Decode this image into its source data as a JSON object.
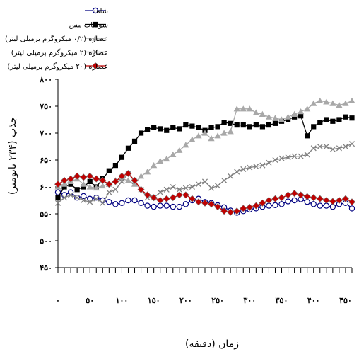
{
  "chart_data": {
    "type": "line",
    "xlabel": "زمان (دقیقه)",
    "ylabel": "جذب (۲۳۴ نانومتر)",
    "xlim": [
      0,
      460
    ],
    "ylim": [
      450,
      800
    ],
    "x_ticks": [
      0,
      50,
      100,
      150,
      200,
      250,
      300,
      350,
      400,
      450
    ],
    "x_tick_labels": [
      "۰",
      "۵۰",
      "۱۰۰",
      "۱۵۰",
      "۲۰۰",
      "۲۵۰",
      "۳۰۰",
      "۳۵۰",
      "۴۰۰",
      "۴۵۰"
    ],
    "y_ticks": [
      450,
      500,
      550,
      600,
      650,
      700,
      750,
      800
    ],
    "y_tick_labels": [
      "۴۵۰",
      "۵۰۰",
      "۵۵۰",
      "۶۰۰",
      "۶۵۰",
      "۷۰۰",
      "۷۵۰",
      "۸۰۰"
    ],
    "grid": false,
    "legend_position": "top-left",
    "x": [
      0,
      10,
      20,
      30,
      40,
      50,
      60,
      70,
      80,
      90,
      100,
      110,
      120,
      130,
      140,
      150,
      160,
      170,
      180,
      190,
      200,
      210,
      220,
      230,
      240,
      250,
      260,
      270,
      280,
      290,
      300,
      310,
      320,
      330,
      340,
      350,
      360,
      370,
      380,
      390,
      400,
      410,
      420,
      430,
      440,
      450,
      460
    ],
    "series": [
      {
        "name": "شاهد",
        "color": "#000080",
        "marker": "circle",
        "values": [
          590,
          585,
          590,
          580,
          583,
          578,
          580,
          575,
          572,
          568,
          570,
          575,
          575,
          570,
          565,
          563,
          565,
          565,
          563,
          563,
          568,
          575,
          578,
          572,
          570,
          566,
          562,
          556,
          552,
          555,
          558,
          560,
          563,
          565,
          566,
          568,
          573,
          575,
          577,
          572,
          568,
          565,
          565,
          563,
          568,
          570,
          560
        ]
      },
      {
        "name": "سولفات مس",
        "color": "#000000",
        "marker": "square",
        "values": [
          580,
          600,
          605,
          595,
          600,
          610,
          600,
          615,
          630,
          640,
          655,
          672,
          685,
          700,
          707,
          710,
          708,
          705,
          710,
          708,
          715,
          713,
          710,
          705,
          710,
          712,
          720,
          718,
          715,
          715,
          712,
          715,
          712,
          715,
          718,
          722,
          725,
          730,
          732,
          695,
          712,
          720,
          725,
          722,
          725,
          730,
          728
        ]
      },
      {
        "name": "عصاره (۰/۲ میکروگرم برمیلی لیتر)",
        "color": "#a8a8a8",
        "marker": "triangle",
        "values": [
          600,
          605,
          610,
          615,
          605,
          600,
          598,
          602,
          605,
          612,
          615,
          612,
          605,
          620,
          628,
          640,
          648,
          652,
          660,
          668,
          678,
          688,
          695,
          700,
          690,
          695,
          700,
          703,
          745,
          745,
          745,
          738,
          735,
          730,
          728,
          725,
          730,
          735,
          740,
          745,
          755,
          760,
          758,
          755,
          752,
          755,
          760
        ]
      },
      {
        "name": "عصاره (۲ میکروگرم برمیلی لیتر)",
        "color": "#808080",
        "marker": "cross",
        "values": [
          570,
          580,
          585,
          580,
          575,
          572,
          578,
          570,
          590,
          595,
          610,
          625,
          610,
          595,
          580,
          580,
          590,
          595,
          600,
          595,
          598,
          600,
          605,
          610,
          598,
          602,
          612,
          620,
          628,
          633,
          636,
          638,
          640,
          645,
          650,
          653,
          655,
          657,
          657,
          660,
          672,
          675,
          675,
          670,
          672,
          675,
          680
        ]
      },
      {
        "name": "عصاره (۲۰ میکروگرم برمیلی لیتر)",
        "color": "#c00000",
        "marker": "diamond",
        "values": [
          605,
          612,
          615,
          620,
          618,
          620,
          615,
          612,
          605,
          610,
          620,
          625,
          612,
          595,
          585,
          580,
          575,
          578,
          580,
          585,
          585,
          578,
          572,
          570,
          568,
          563,
          555,
          553,
          555,
          560,
          562,
          565,
          570,
          575,
          578,
          580,
          585,
          588,
          585,
          582,
          580,
          578,
          575,
          573,
          575,
          578,
          572
        ]
      }
    ]
  }
}
